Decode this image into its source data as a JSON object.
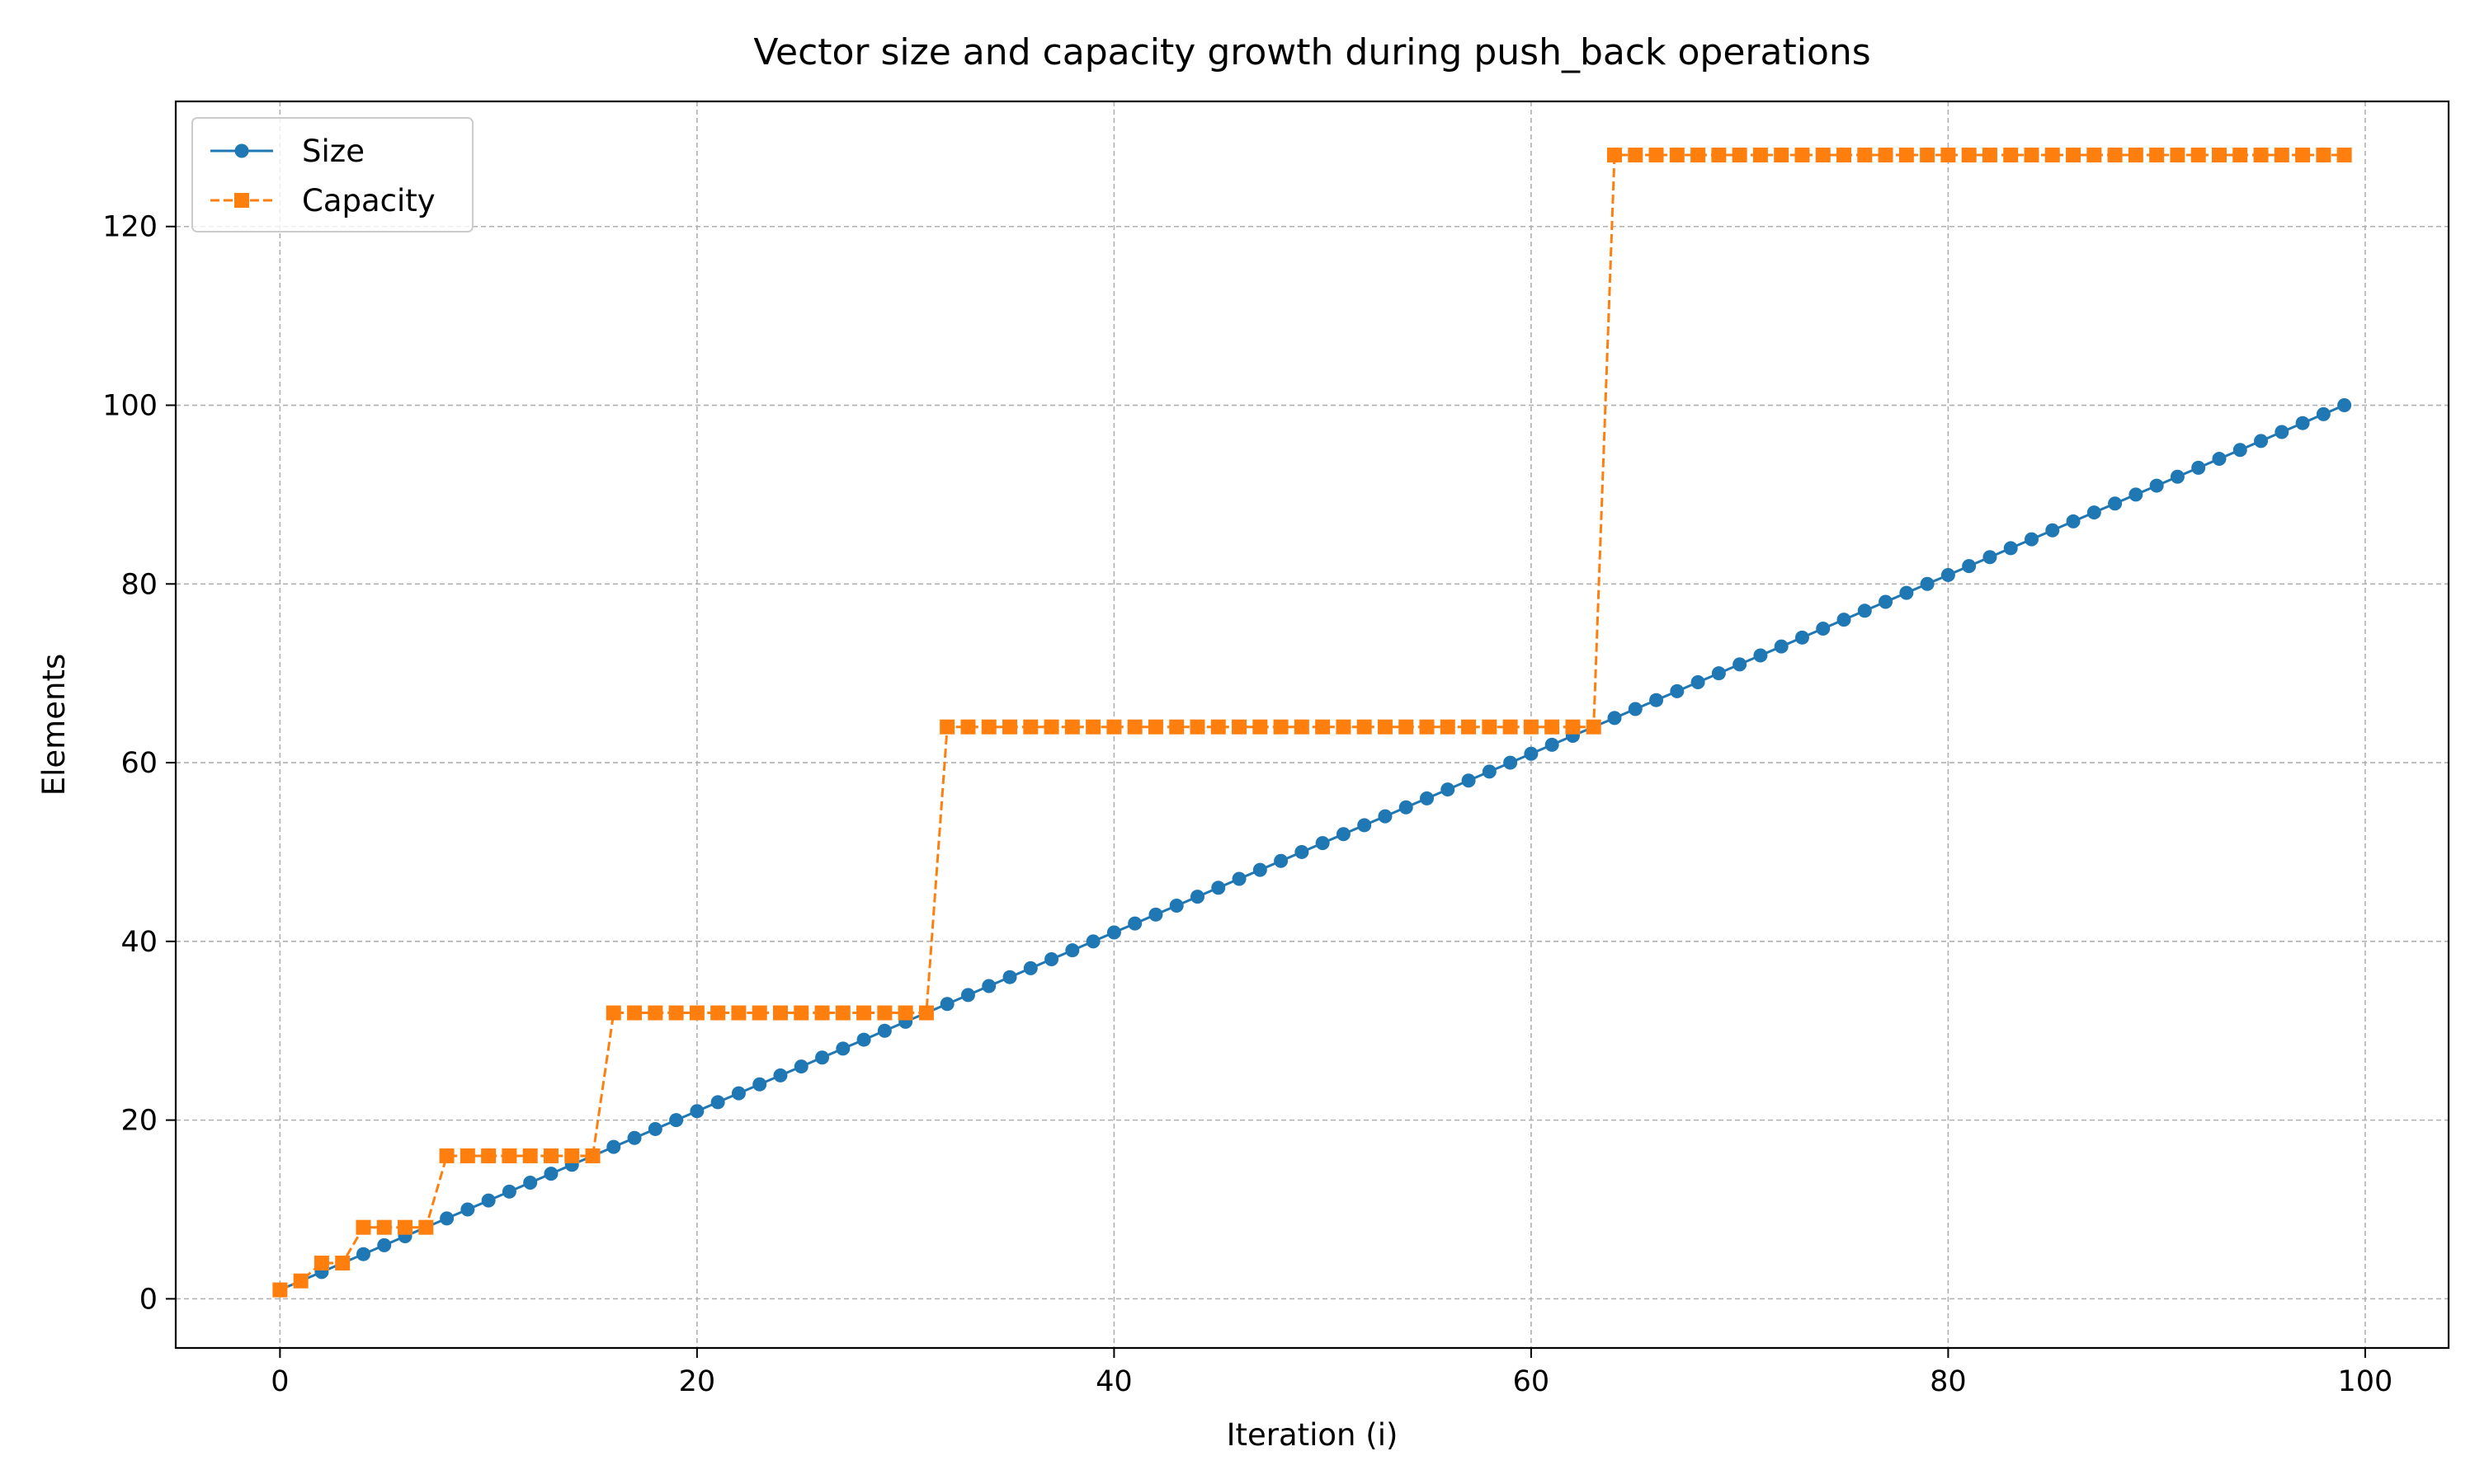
{
  "chart_data": {
    "type": "line",
    "title": "Vector size and capacity growth during push_back operations",
    "xlabel": "Iteration (i)",
    "ylabel": "Elements",
    "xlim": [
      -5,
      104
    ],
    "ylim": [
      -5.5,
      134
    ],
    "xticks": [
      0,
      20,
      40,
      60,
      80,
      100
    ],
    "yticks": [
      0,
      20,
      40,
      60,
      80,
      100,
      120
    ],
    "grid": true,
    "legend_position": "top-left",
    "series": [
      {
        "name": "Size",
        "color": "#1f77b4",
        "line_style": "solid",
        "marker": "circle",
        "x": [
          0,
          1,
          2,
          3,
          4,
          5,
          6,
          7,
          8,
          9,
          10,
          11,
          12,
          13,
          14,
          15,
          16,
          17,
          18,
          19,
          20,
          21,
          22,
          23,
          24,
          25,
          26,
          27,
          28,
          29,
          30,
          31,
          32,
          33,
          34,
          35,
          36,
          37,
          38,
          39,
          40,
          41,
          42,
          43,
          44,
          45,
          46,
          47,
          48,
          49,
          50,
          51,
          52,
          53,
          54,
          55,
          56,
          57,
          58,
          59,
          60,
          61,
          62,
          63,
          64,
          65,
          66,
          67,
          68,
          69,
          70,
          71,
          72,
          73,
          74,
          75,
          76,
          77,
          78,
          79,
          80,
          81,
          82,
          83,
          84,
          85,
          86,
          87,
          88,
          89,
          90,
          91,
          92,
          93,
          94,
          95,
          96,
          97,
          98,
          99
        ],
        "y": [
          1,
          2,
          3,
          4,
          5,
          6,
          7,
          8,
          9,
          10,
          11,
          12,
          13,
          14,
          15,
          16,
          17,
          18,
          19,
          20,
          21,
          22,
          23,
          24,
          25,
          26,
          27,
          28,
          29,
          30,
          31,
          32,
          33,
          34,
          35,
          36,
          37,
          38,
          39,
          40,
          41,
          42,
          43,
          44,
          45,
          46,
          47,
          48,
          49,
          50,
          51,
          52,
          53,
          54,
          55,
          56,
          57,
          58,
          59,
          60,
          61,
          62,
          63,
          64,
          65,
          66,
          67,
          68,
          69,
          70,
          71,
          72,
          73,
          74,
          75,
          76,
          77,
          78,
          79,
          80,
          81,
          82,
          83,
          84,
          85,
          86,
          87,
          88,
          89,
          90,
          91,
          92,
          93,
          94,
          95,
          96,
          97,
          98,
          99,
          100
        ]
      },
      {
        "name": "Capacity",
        "color": "#ff7f0e",
        "line_style": "dashed",
        "marker": "square",
        "x": [
          0,
          1,
          2,
          3,
          4,
          5,
          6,
          7,
          8,
          9,
          10,
          11,
          12,
          13,
          14,
          15,
          16,
          17,
          18,
          19,
          20,
          21,
          22,
          23,
          24,
          25,
          26,
          27,
          28,
          29,
          30,
          31,
          32,
          33,
          34,
          35,
          36,
          37,
          38,
          39,
          40,
          41,
          42,
          43,
          44,
          45,
          46,
          47,
          48,
          49,
          50,
          51,
          52,
          53,
          54,
          55,
          56,
          57,
          58,
          59,
          60,
          61,
          62,
          63,
          64,
          65,
          66,
          67,
          68,
          69,
          70,
          71,
          72,
          73,
          74,
          75,
          76,
          77,
          78,
          79,
          80,
          81,
          82,
          83,
          84,
          85,
          86,
          87,
          88,
          89,
          90,
          91,
          92,
          93,
          94,
          95,
          96,
          97,
          98,
          99
        ],
        "y": [
          1,
          2,
          4,
          4,
          8,
          8,
          8,
          8,
          16,
          16,
          16,
          16,
          16,
          16,
          16,
          16,
          32,
          32,
          32,
          32,
          32,
          32,
          32,
          32,
          32,
          32,
          32,
          32,
          32,
          32,
          32,
          32,
          64,
          64,
          64,
          64,
          64,
          64,
          64,
          64,
          64,
          64,
          64,
          64,
          64,
          64,
          64,
          64,
          64,
          64,
          64,
          64,
          64,
          64,
          64,
          64,
          64,
          64,
          64,
          64,
          64,
          64,
          64,
          64,
          128,
          128,
          128,
          128,
          128,
          128,
          128,
          128,
          128,
          128,
          128,
          128,
          128,
          128,
          128,
          128,
          128,
          128,
          128,
          128,
          128,
          128,
          128,
          128,
          128,
          128,
          128,
          128,
          128,
          128,
          128,
          128,
          128,
          128,
          128,
          128
        ]
      }
    ]
  }
}
